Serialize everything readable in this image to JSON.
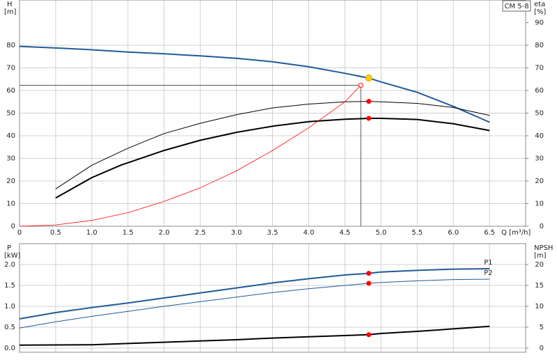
{
  "chart_data": [
    {
      "type": "line",
      "title": "CM 5-8",
      "y_label": "H",
      "y_unit": "[m]",
      "y2_label": "eta",
      "y2_unit": "[%]",
      "x_label": "Q [m³/h]",
      "xlim": [
        0,
        7
      ],
      "ylim": [
        0,
        100
      ],
      "y2lim": [
        0,
        100
      ],
      "grid": true,
      "show_x_tick_labels": true,
      "xticks": [
        0,
        0.5,
        {
          "value": 1,
          "label": "1.0"
        },
        1.5,
        {
          "value": 2,
          "label": "2.0"
        },
        2.5,
        {
          "value": 3,
          "label": "3.0"
        },
        3.5,
        {
          "value": 4,
          "label": "4.0"
        },
        4.5,
        {
          "value": 5,
          "label": "5.0"
        },
        5.5,
        {
          "value": 6,
          "label": "6.0"
        },
        6.5
      ],
      "yticks": [
        0,
        10,
        20,
        30,
        40,
        50,
        60,
        70,
        80
      ],
      "y2ticks": [
        0,
        10,
        20,
        30,
        40,
        50,
        60,
        70,
        80,
        90
      ],
      "series": [
        {
          "color": "#1f5a99",
          "width": 2,
          "x": [
            0,
            0.5,
            1,
            1.5,
            2,
            2.5,
            3,
            3.5,
            4,
            4.5,
            4.83,
            5,
            5.5,
            6,
            6.5
          ],
          "values": [
            79.5,
            78.8,
            78,
            77,
            76.2,
            75.3,
            74.2,
            72.7,
            70.5,
            67.6,
            65.5,
            63.8,
            59.2,
            53,
            46
          ]
        },
        {
          "color": "#000000",
          "width": 1,
          "axis": "y2",
          "x": [
            0.5,
            1,
            1.5,
            2,
            2.5,
            3,
            3.5,
            4,
            4.5,
            4.83,
            5,
            5.5,
            6,
            6.5
          ],
          "values": [
            16.5,
            27,
            34.5,
            41,
            45.5,
            49.3,
            52.3,
            54,
            55,
            55.2,
            55,
            54.3,
            52.5,
            49
          ]
        },
        {
          "color": "#000000",
          "width": 2,
          "axis": "y2",
          "x": [
            0.5,
            1,
            1.4,
            2,
            2.5,
            3,
            3.5,
            4,
            4.5,
            4.83,
            5,
            5.5,
            6,
            6.5
          ],
          "values": [
            12.5,
            21.5,
            27,
            33.5,
            38,
            41.5,
            44.2,
            46.2,
            47.3,
            47.7,
            47.7,
            47.2,
            45.3,
            42.3
          ]
        },
        {
          "color": "#ff0000",
          "width": 0.8,
          "x": [
            0,
            0.5,
            1,
            1.5,
            2,
            2.5,
            3,
            3.5,
            4,
            4.5,
            4.72
          ],
          "values": [
            0,
            0.6,
            2.6,
            6,
            11,
            17,
            24.5,
            33.5,
            43.5,
            55,
            62.3
          ]
        }
      ],
      "duty_point": {
        "x": 4.72,
        "y": 62.3,
        "color": "#ff0000"
      },
      "points": [
        {
          "x": 4.83,
          "y": 65.5,
          "color": "#ffcc00"
        },
        {
          "x": 4.83,
          "y": 55.2,
          "color": "#ff0000",
          "axis": "y2"
        },
        {
          "x": 4.83,
          "y": 47.7,
          "color": "#ff0000",
          "axis": "y2"
        }
      ]
    },
    {
      "type": "line",
      "y_label": "P",
      "y_unit": "[kW]",
      "y2_label": "NPSH",
      "y2_unit": "[m]",
      "xlim": [
        0,
        7
      ],
      "ylim": [
        -0.1,
        2.5
      ],
      "y2lim": [
        -1,
        25
      ],
      "grid": true,
      "show_x_tick_labels": false,
      "xticks": [
        0.5,
        1,
        1.5,
        2,
        2.5,
        3,
        3.5,
        4,
        4.5,
        5,
        5.5,
        6,
        6.5
      ],
      "yticks": [
        {
          "value": 0,
          "label": "0.0"
        },
        0.5,
        {
          "value": 1,
          "label": "1.0"
        },
        1.5,
        {
          "value": 2,
          "label": "2.0"
        }
      ],
      "y2ticks": [
        0,
        5,
        10,
        15,
        20
      ],
      "series": [
        {
          "name": "P1",
          "color": "#1f5a99",
          "width": 2,
          "x": [
            0,
            0.5,
            1,
            1.5,
            2,
            2.5,
            3,
            3.5,
            4,
            4.5,
            4.83,
            5,
            5.5,
            6,
            6.5
          ],
          "values": [
            0.7,
            0.85,
            0.97,
            1.08,
            1.2,
            1.32,
            1.44,
            1.56,
            1.66,
            1.75,
            1.79,
            1.82,
            1.86,
            1.89,
            1.9
          ]
        },
        {
          "name": "P2",
          "color": "#1f5a99",
          "width": 1,
          "x": [
            0,
            0.5,
            1,
            1.5,
            2,
            2.5,
            3,
            3.5,
            4,
            4.5,
            4.83,
            5,
            5.5,
            6,
            6.5
          ],
          "values": [
            0.48,
            0.63,
            0.76,
            0.88,
            1,
            1.11,
            1.22,
            1.33,
            1.42,
            1.5,
            1.55,
            1.57,
            1.61,
            1.64,
            1.65
          ]
        },
        {
          "color": "#000000",
          "width": 2,
          "axis": "y2",
          "x": [
            0,
            1,
            1.5,
            2,
            2.5,
            3,
            3.5,
            4,
            4.5,
            4.83,
            5,
            5.5,
            6,
            6.5
          ],
          "values": [
            0.7,
            0.8,
            1.1,
            1.4,
            1.7,
            2,
            2.4,
            2.7,
            3,
            3.2,
            3.5,
            4,
            4.6,
            5.2
          ]
        }
      ],
      "points": [
        {
          "x": 4.83,
          "y": 1.79,
          "color": "#ff0000"
        },
        {
          "x": 4.83,
          "y": 1.55,
          "color": "#ff0000"
        },
        {
          "x": 4.83,
          "y": 3.2,
          "color": "#ff0000",
          "axis": "y2"
        }
      ]
    }
  ]
}
